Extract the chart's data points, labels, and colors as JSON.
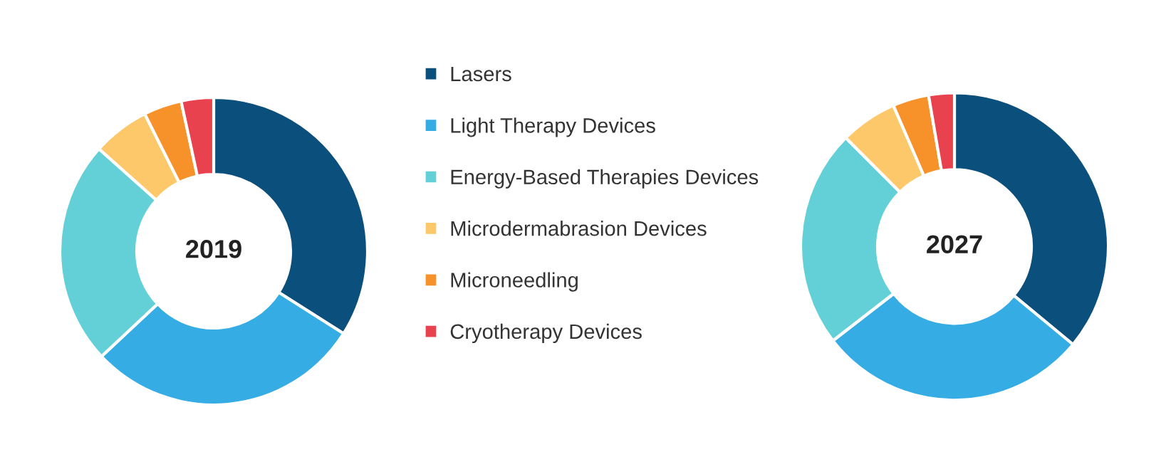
{
  "chart_data": [
    {
      "type": "donut",
      "categories": [
        "Lasers",
        "Light Therapy Devices",
        "Energy-Based Therapies Devices",
        "Microdermabrasion Devices",
        "Microneedling",
        "Cryotherapy Devices"
      ],
      "values": [
        34,
        29,
        23.6,
        6,
        4,
        3.4
      ],
      "colors": [
        "#0b4f7c",
        "#35ade4",
        "#63d0d8",
        "#fdc86a",
        "#f7922b",
        "#e8424f"
      ],
      "annotations": [
        "2019"
      ],
      "legend": "right"
    },
    {
      "type": "donut",
      "categories": [
        null,
        null,
        null,
        null,
        null,
        null
      ],
      "values": [
        36,
        28.5,
        23,
        6,
        3.8,
        2.7
      ],
      "colors": [
        "#0b4f7c",
        "#35ade4",
        "#63d0d8",
        "#fdc86a",
        "#f7922b",
        "#e8424f"
      ],
      "annotations": [
        "2027"
      ]
    }
  ]
}
